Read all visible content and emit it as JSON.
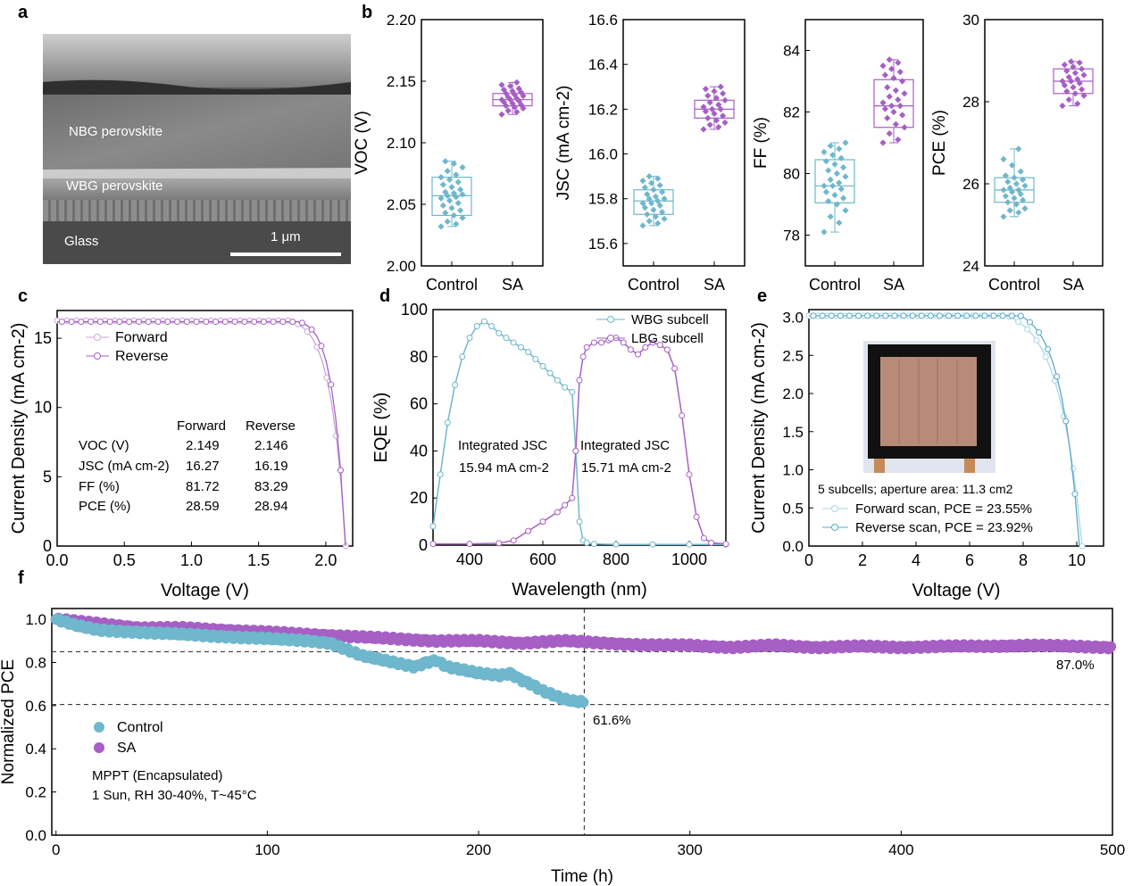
{
  "panel_labels": [
    "a",
    "b",
    "c",
    "d",
    "e",
    "f"
  ],
  "panel_a": {
    "layers": [
      "NBG perovskite",
      "WBG perovskite",
      "Glass"
    ],
    "scalebar": "1 μm"
  },
  "colors": {
    "control": "#6fb7cc",
    "sa": "#a65fc4",
    "wbg": "#6fb7cc",
    "lbg": "#a65fc4",
    "forward_e": "#a9d7e6",
    "reverse_e": "#59a9c8"
  },
  "chart_data": [
    {
      "panel": "b1",
      "type": "box",
      "categories": [
        "Control",
        "SA"
      ],
      "ylabel": "VOC (V)",
      "ylim": [
        2.0,
        2.2
      ],
      "yticks": [
        "2.00",
        "2.05",
        "2.10",
        "2.15",
        "2.20"
      ],
      "series": [
        {
          "name": "Control",
          "q1": 2.041,
          "median": 2.057,
          "q3": 2.072,
          "min": 2.032,
          "max": 2.085,
          "points": [
            2.032,
            2.034,
            2.036,
            2.039,
            2.041,
            2.043,
            2.045,
            2.047,
            2.049,
            2.051,
            2.053,
            2.055,
            2.056,
            2.057,
            2.058,
            2.059,
            2.06,
            2.062,
            2.064,
            2.066,
            2.068,
            2.07,
            2.072,
            2.074,
            2.077,
            2.08,
            2.083,
            2.085
          ]
        },
        {
          "name": "SA",
          "q1": 2.13,
          "median": 2.135,
          "q3": 2.14,
          "min": 2.123,
          "max": 2.149,
          "points": [
            2.123,
            2.125,
            2.126,
            2.128,
            2.129,
            2.13,
            2.131,
            2.132,
            2.133,
            2.134,
            2.135,
            2.135,
            2.136,
            2.137,
            2.138,
            2.139,
            2.14,
            2.141,
            2.142,
            2.143,
            2.144,
            2.146,
            2.147,
            2.149
          ]
        }
      ]
    },
    {
      "panel": "b2",
      "type": "box",
      "categories": [
        "Control",
        "SA"
      ],
      "ylabel": "JSC (mA cm-2)",
      "ylim": [
        15.5,
        16.6
      ],
      "yticks": [
        "15.6",
        "15.8",
        "16.0",
        "16.2",
        "16.4",
        "16.6"
      ],
      "series": [
        {
          "name": "Control",
          "q1": 15.73,
          "median": 15.79,
          "q3": 15.84,
          "min": 15.68,
          "max": 15.9,
          "points": [
            15.68,
            15.69,
            15.7,
            15.71,
            15.72,
            15.73,
            15.74,
            15.75,
            15.76,
            15.77,
            15.78,
            15.78,
            15.79,
            15.8,
            15.8,
            15.81,
            15.82,
            15.83,
            15.84,
            15.85,
            15.86,
            15.87,
            15.88,
            15.89,
            15.9
          ]
        },
        {
          "name": "SA",
          "q1": 16.16,
          "median": 16.2,
          "q3": 16.24,
          "min": 16.11,
          "max": 16.3,
          "points": [
            16.11,
            16.12,
            16.13,
            16.14,
            16.15,
            16.16,
            16.17,
            16.18,
            16.19,
            16.2,
            16.2,
            16.21,
            16.22,
            16.23,
            16.24,
            16.25,
            16.26,
            16.27,
            16.28,
            16.29,
            16.3
          ]
        }
      ]
    },
    {
      "panel": "b3",
      "type": "box",
      "categories": [
        "Control",
        "SA"
      ],
      "ylabel": "FF (%)",
      "ylim": [
        77,
        85
      ],
      "yticks": [
        "78",
        "80",
        "82",
        "84"
      ],
      "series": [
        {
          "name": "Control",
          "q1": 79.05,
          "median": 79.6,
          "q3": 80.45,
          "min": 78.1,
          "max": 81.0,
          "points": [
            78.1,
            78.4,
            78.6,
            78.8,
            79.0,
            79.1,
            79.2,
            79.3,
            79.4,
            79.5,
            79.6,
            79.6,
            79.7,
            79.8,
            79.9,
            80.0,
            80.1,
            80.2,
            80.3,
            80.4,
            80.5,
            80.6,
            80.7,
            80.8,
            80.9,
            81.0
          ]
        },
        {
          "name": "SA",
          "q1": 81.5,
          "median": 82.2,
          "q3": 83.05,
          "min": 81.0,
          "max": 83.7,
          "points": [
            81.0,
            81.1,
            81.3,
            81.5,
            81.6,
            81.8,
            81.9,
            82.0,
            82.1,
            82.2,
            82.2,
            82.3,
            82.4,
            82.5,
            82.6,
            82.7,
            82.8,
            83.0,
            83.1,
            83.2,
            83.3,
            83.4,
            83.5,
            83.6,
            83.7
          ]
        }
      ]
    },
    {
      "panel": "b4",
      "type": "box",
      "categories": [
        "Control",
        "SA"
      ],
      "ylabel": "PCE (%)",
      "ylim": [
        24,
        30
      ],
      "yticks": [
        "24",
        "26",
        "28",
        "30"
      ],
      "series": [
        {
          "name": "Control",
          "q1": 25.55,
          "median": 25.85,
          "q3": 26.15,
          "min": 25.2,
          "max": 26.85,
          "points": [
            25.2,
            25.3,
            25.35,
            25.4,
            25.5,
            25.55,
            25.6,
            25.65,
            25.7,
            25.75,
            25.8,
            25.85,
            25.85,
            25.9,
            25.95,
            26.0,
            26.05,
            26.1,
            26.15,
            26.2,
            26.3,
            26.45,
            26.6,
            26.85
          ]
        },
        {
          "name": "SA",
          "q1": 28.2,
          "median": 28.5,
          "q3": 28.8,
          "min": 27.9,
          "max": 28.98,
          "points": [
            27.9,
            27.95,
            28.05,
            28.15,
            28.2,
            28.25,
            28.3,
            28.35,
            28.4,
            28.45,
            28.5,
            28.5,
            28.55,
            28.6,
            28.65,
            28.7,
            28.75,
            28.8,
            28.85,
            28.9,
            28.95,
            28.98
          ]
        }
      ]
    },
    {
      "panel": "c",
      "type": "line",
      "xlabel": "Voltage (V)",
      "ylabel": "Current Density (mA cm-2)",
      "xlim": [
        0,
        2.2
      ],
      "ylim": [
        0,
        17
      ],
      "xticks": [
        "0.0",
        "0.5",
        "1.0",
        "1.5",
        "2.0"
      ],
      "yticks": [
        "0",
        "5",
        "10",
        "15"
      ],
      "legend": "top-left",
      "series": [
        {
          "name": "Forward",
          "voc": 2.149,
          "jsc": 16.27,
          "knee": 1.72
        },
        {
          "name": "Reverse",
          "voc": 2.146,
          "jsc": 16.19,
          "knee": 1.8
        }
      ],
      "table": {
        "headers": [
          "",
          "Forward",
          "Reverse"
        ],
        "rows": [
          [
            "VOC (V)",
            "2.149",
            "2.146"
          ],
          [
            "JSC (mA cm-2)",
            "16.27",
            "16.19"
          ],
          [
            "FF (%)",
            "81.72",
            "83.29"
          ],
          [
            "PCE (%)",
            "28.59",
            "28.94"
          ]
        ]
      }
    },
    {
      "panel": "d",
      "type": "line",
      "xlabel": "Wavelength (nm)",
      "ylabel": "EQE (%)",
      "xlim": [
        300,
        1100
      ],
      "ylim": [
        0,
        100
      ],
      "xticks": [
        "400",
        "600",
        "800",
        "1000"
      ],
      "yticks": [
        "0",
        "20",
        "40",
        "60",
        "80",
        "100"
      ],
      "legend": "top-right",
      "series": [
        {
          "name": "WBG subcell",
          "x": [
            300,
            320,
            340,
            360,
            380,
            400,
            420,
            440,
            460,
            480,
            500,
            520,
            540,
            560,
            580,
            600,
            620,
            640,
            660,
            680,
            690,
            700,
            710,
            720,
            740,
            800,
            900,
            1000,
            1100
          ],
          "y": [
            8,
            30,
            52,
            68,
            80,
            88,
            93,
            95,
            93,
            90,
            88,
            86,
            84,
            82,
            79,
            76,
            73,
            70,
            67,
            65,
            40,
            10,
            2,
            1,
            0.5,
            0.3,
            0.3,
            0.3,
            0.3
          ]
        },
        {
          "name": "LBG subcell",
          "x": [
            300,
            400,
            480,
            520,
            560,
            600,
            640,
            660,
            680,
            690,
            700,
            710,
            720,
            740,
            760,
            780,
            800,
            820,
            840,
            860,
            880,
            900,
            920,
            940,
            960,
            980,
            1000,
            1020,
            1040,
            1060,
            1100
          ],
          "y": [
            0.5,
            0.5,
            0.8,
            2,
            6,
            10,
            14,
            17,
            20,
            40,
            70,
            80,
            84,
            86,
            86,
            87,
            88,
            86,
            83,
            81,
            84,
            86,
            85,
            83,
            75,
            55,
            30,
            12,
            3,
            1,
            0.5
          ]
        }
      ],
      "annotations": [
        {
          "label": "Integrated JSC",
          "value": "15.94 mA cm-2"
        },
        {
          "label": "Integrated JSC",
          "value": "15.71 mA cm-2"
        }
      ]
    },
    {
      "panel": "e",
      "type": "line",
      "xlabel": "Voltage (V)",
      "ylabel": "Current Density (mA cm-2)",
      "xlim": [
        0,
        11
      ],
      "ylim": [
        0,
        3.1
      ],
      "xticks": [
        "0",
        "2",
        "4",
        "6",
        "8",
        "10"
      ],
      "yticks": [
        "0.0",
        "0.5",
        "1.0",
        "1.5",
        "2.0",
        "2.5",
        "3.0"
      ],
      "legend": "bottom-left",
      "note": "5 subcells; aperture area: 11.3 cm2",
      "series": [
        {
          "name": "Forward scan, PCE = 23.55%",
          "voc": 10.2,
          "jsc": 3.02,
          "knee": 7.4
        },
        {
          "name": "Reverse scan, PCE = 23.92%",
          "voc": 10.1,
          "jsc": 3.02,
          "knee": 7.9
        }
      ]
    },
    {
      "panel": "f",
      "type": "scatter",
      "xlabel": "Time (h)",
      "ylabel": "Normalized PCE",
      "xlim": [
        -2,
        500
      ],
      "ylim": [
        0,
        1.05
      ],
      "xticks": [
        "0",
        "100",
        "200",
        "300",
        "400",
        "500"
      ],
      "yticks": [
        "0.0",
        "0.2",
        "0.4",
        "0.6",
        "0.8",
        "1.0"
      ],
      "legend": "bottom-left",
      "notes": [
        "MPPT (Encapsulated)",
        "1 Sun, RH 30-40%, T~45°C"
      ],
      "reference_lines": {
        "y": [
          0.85,
          0.605
        ],
        "x": [
          250
        ]
      },
      "annotations": [
        "61.6%",
        "87.0%"
      ],
      "series": [
        {
          "name": "Control",
          "x": [
            0,
            10,
            20,
            40,
            60,
            80,
            100,
            120,
            130,
            140,
            145,
            150,
            160,
            170,
            175,
            180,
            185,
            190,
            200,
            210,
            215,
            220,
            225,
            230,
            235,
            240,
            245,
            250
          ],
          "y": [
            1.0,
            0.97,
            0.95,
            0.94,
            0.93,
            0.92,
            0.91,
            0.9,
            0.89,
            0.85,
            0.83,
            0.82,
            0.8,
            0.78,
            0.8,
            0.81,
            0.78,
            0.77,
            0.75,
            0.74,
            0.75,
            0.72,
            0.7,
            0.67,
            0.65,
            0.63,
            0.62,
            0.616
          ]
        },
        {
          "name": "SA",
          "x": [
            0,
            20,
            40,
            60,
            80,
            100,
            120,
            140,
            160,
            180,
            200,
            220,
            240,
            260,
            280,
            300,
            320,
            340,
            360,
            380,
            400,
            420,
            440,
            460,
            480,
            500
          ],
          "y": [
            1.0,
            0.98,
            0.96,
            0.96,
            0.95,
            0.94,
            0.93,
            0.92,
            0.91,
            0.9,
            0.9,
            0.89,
            0.9,
            0.89,
            0.88,
            0.88,
            0.87,
            0.88,
            0.87,
            0.875,
            0.87,
            0.875,
            0.875,
            0.88,
            0.875,
            0.87
          ]
        }
      ]
    }
  ]
}
